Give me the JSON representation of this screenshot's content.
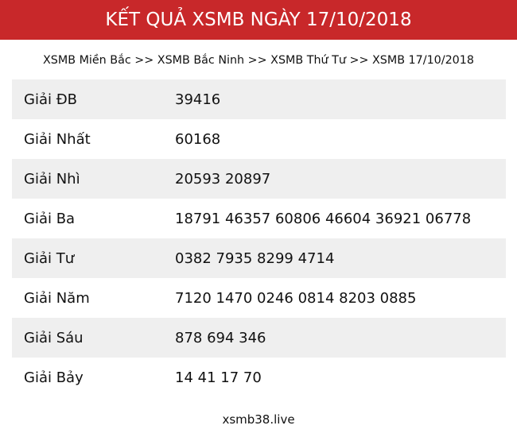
{
  "header": {
    "title": "KẾT QUẢ XSMB NGÀY 17/10/2018"
  },
  "breadcrumb": {
    "items": [
      "XSMB Miền Bắc",
      "XSMB Bắc Ninh",
      "XSMB Thứ Tư",
      "XSMB 17/10/2018"
    ],
    "separator": ">>"
  },
  "results": [
    {
      "label": "Giải ĐB",
      "value": "39416"
    },
    {
      "label": "Giải Nhất",
      "value": "60168"
    },
    {
      "label": "Giải Nhì",
      "value": "20593 20897"
    },
    {
      "label": "Giải Ba",
      "value": "18791 46357 60806 46604 36921 06778"
    },
    {
      "label": "Giải Tư",
      "value": "0382 7935 8299 4714"
    },
    {
      "label": "Giải Năm",
      "value": "7120 1470 0246 0814 8203 0885"
    },
    {
      "label": "Giải Sáu",
      "value": "878 694 346"
    },
    {
      "label": "Giải Bảy",
      "value": "14 41 17 70"
    }
  ],
  "footer": {
    "site": "xsmb38.live"
  },
  "colors": {
    "header_bg": "#c8282a",
    "stripe": "#efefef"
  }
}
